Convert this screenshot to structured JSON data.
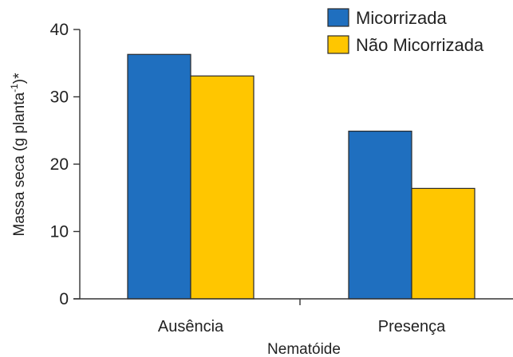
{
  "chart_data": {
    "type": "bar",
    "categories": [
      "Ausência",
      "Presença"
    ],
    "series": [
      {
        "name": "Micorrizada",
        "values": [
          36.3,
          24.9
        ],
        "color": "#1f6fbf"
      },
      {
        "name": "Não Micorrizada",
        "values": [
          33.1,
          16.4
        ],
        "color": "#ffc600"
      }
    ],
    "xlabel": "Nematóide",
    "ylabel": {
      "before": "Massa seca (g planta",
      "sup": "-1",
      "after": ")*"
    },
    "ylim": [
      0,
      40
    ],
    "yticks": [
      "0",
      "10",
      "20",
      "30",
      "40"
    ],
    "grid": false,
    "legend_position": "top-right"
  }
}
